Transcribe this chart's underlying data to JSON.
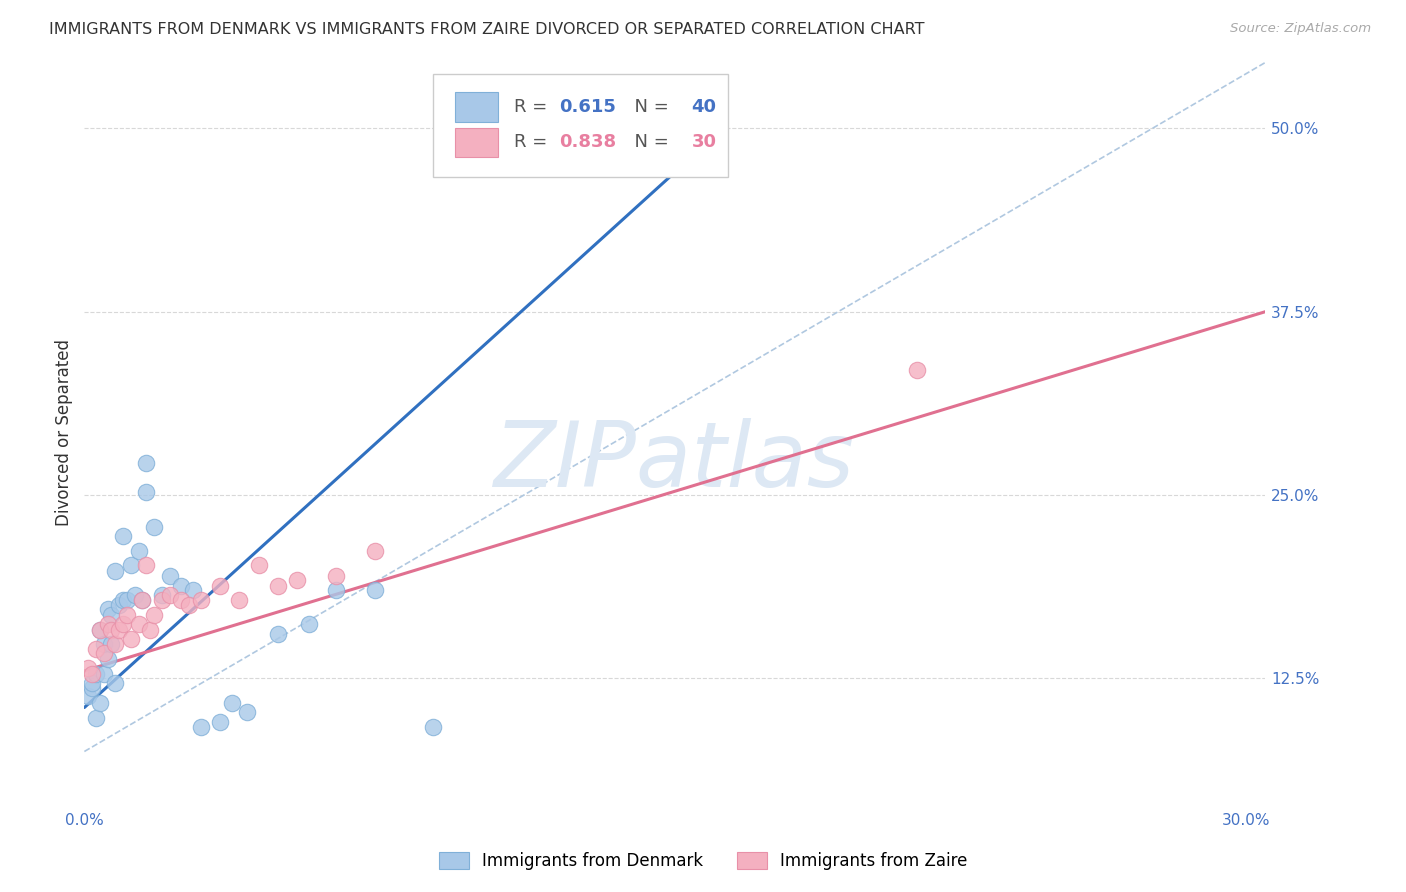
{
  "title": "IMMIGRANTS FROM DENMARK VS IMMIGRANTS FROM ZAIRE DIVORCED OR SEPARATED CORRELATION CHART",
  "source": "Source: ZipAtlas.com",
  "ylabel": "Divorced or Separated",
  "xlim": [
    0.0,
    0.305
  ],
  "ylim": [
    0.04,
    0.545
  ],
  "xticks": [
    0.0,
    0.05,
    0.1,
    0.15,
    0.2,
    0.25,
    0.3
  ],
  "yticks_right": [
    0.125,
    0.25,
    0.375,
    0.5
  ],
  "yticklabels_right": [
    "12.5%",
    "25.0%",
    "37.5%",
    "50.0%"
  ],
  "blue_fill": "#a8c8e8",
  "pink_fill": "#f4b0c0",
  "blue_edge": "#80b0d8",
  "pink_edge": "#e890a8",
  "blue_line_color": "#3070c0",
  "pink_line_color": "#e07090",
  "ref_line_color": "#b0c8e0",
  "watermark": "ZIPatlas",
  "watermark_color": "#dde8f4",
  "legend_R1": "0.615",
  "legend_N1": "40",
  "legend_R2": "0.838",
  "legend_N2": "30",
  "blue_scatter_x": [
    0.001,
    0.002,
    0.002,
    0.003,
    0.003,
    0.004,
    0.004,
    0.005,
    0.005,
    0.006,
    0.006,
    0.007,
    0.007,
    0.008,
    0.008,
    0.009,
    0.01,
    0.01,
    0.011,
    0.012,
    0.013,
    0.014,
    0.015,
    0.016,
    0.016,
    0.018,
    0.02,
    0.022,
    0.025,
    0.028,
    0.03,
    0.035,
    0.038,
    0.042,
    0.05,
    0.058,
    0.065,
    0.075,
    0.09,
    0.16
  ],
  "blue_scatter_y": [
    0.113,
    0.118,
    0.122,
    0.098,
    0.128,
    0.108,
    0.158,
    0.128,
    0.148,
    0.172,
    0.138,
    0.168,
    0.148,
    0.198,
    0.122,
    0.175,
    0.178,
    0.222,
    0.178,
    0.202,
    0.182,
    0.212,
    0.178,
    0.252,
    0.272,
    0.228,
    0.182,
    0.195,
    0.188,
    0.185,
    0.092,
    0.095,
    0.108,
    0.102,
    0.155,
    0.162,
    0.185,
    0.185,
    0.092,
    0.478
  ],
  "pink_scatter_x": [
    0.001,
    0.002,
    0.003,
    0.004,
    0.005,
    0.006,
    0.007,
    0.008,
    0.009,
    0.01,
    0.011,
    0.012,
    0.014,
    0.015,
    0.016,
    0.017,
    0.018,
    0.02,
    0.022,
    0.025,
    0.027,
    0.03,
    0.035,
    0.04,
    0.045,
    0.05,
    0.055,
    0.065,
    0.075,
    0.215
  ],
  "pink_scatter_y": [
    0.132,
    0.128,
    0.145,
    0.158,
    0.142,
    0.162,
    0.158,
    0.148,
    0.158,
    0.162,
    0.168,
    0.152,
    0.162,
    0.178,
    0.202,
    0.158,
    0.168,
    0.178,
    0.182,
    0.178,
    0.175,
    0.178,
    0.188,
    0.178,
    0.202,
    0.188,
    0.192,
    0.195,
    0.212,
    0.335
  ],
  "blue_line_x": [
    0.0,
    0.165
  ],
  "blue_line_y": [
    0.105,
    0.5
  ],
  "pink_line_x": [
    0.0,
    0.305
  ],
  "pink_line_y": [
    0.13,
    0.375
  ],
  "ref_line_x": [
    0.0,
    0.305
  ],
  "ref_line_y": [
    0.075,
    0.545
  ],
  "grid_color": "#d8d8d8",
  "bg_color": "#ffffff",
  "text_color": "#333333",
  "axis_tick_color": "#4472c4",
  "pink_legend_color": "#e87fa0",
  "legend_text_color": "#555555"
}
